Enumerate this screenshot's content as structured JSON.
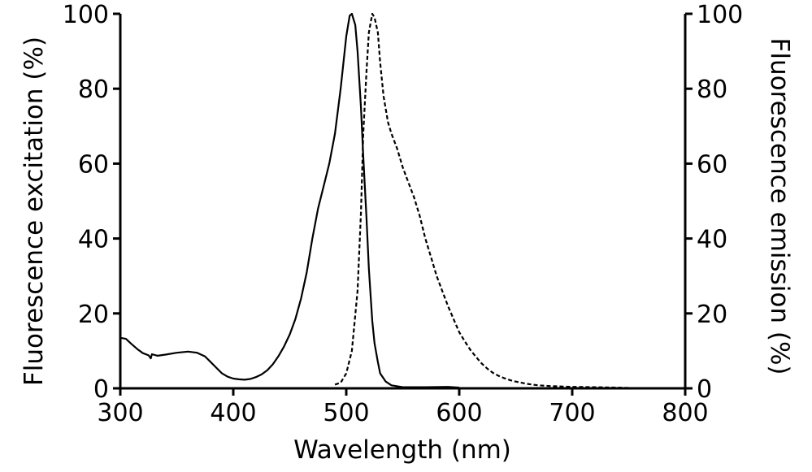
{
  "chart_data": {
    "type": "line",
    "title": "",
    "xlabel": "Wavelength (nm)",
    "ylabel_left": "Fluorescence excitation (%)",
    "ylabel_right": "Fluorescence emission (%)",
    "xlim": [
      300,
      800
    ],
    "ylim": [
      0,
      100
    ],
    "x_ticks": [
      300,
      400,
      500,
      600,
      700,
      800
    ],
    "y_ticks": [
      0,
      20,
      40,
      60,
      80,
      100
    ],
    "x_tick_labels": [
      "300",
      "400",
      "500",
      "600",
      "700",
      "800"
    ],
    "y_tick_labels": [
      "0",
      "20",
      "40",
      "60",
      "80",
      "100"
    ],
    "grid": false,
    "legend": "none",
    "series": [
      {
        "line_style": "solid",
        "color": "#000000",
        "points": [
          [
            300,
            13.5
          ],
          [
            305,
            13.2
          ],
          [
            310,
            11.8
          ],
          [
            315,
            10.5
          ],
          [
            320,
            9.4
          ],
          [
            325,
            8.8
          ],
          [
            327,
            8.0
          ],
          [
            328,
            9.1
          ],
          [
            333,
            8.7
          ],
          [
            340,
            9.0
          ],
          [
            350,
            9.5
          ],
          [
            360,
            9.8
          ],
          [
            368,
            9.5
          ],
          [
            375,
            8.5
          ],
          [
            380,
            7.0
          ],
          [
            385,
            5.5
          ],
          [
            390,
            4.0
          ],
          [
            395,
            3.1
          ],
          [
            400,
            2.6
          ],
          [
            405,
            2.4
          ],
          [
            410,
            2.3
          ],
          [
            415,
            2.5
          ],
          [
            420,
            3.0
          ],
          [
            425,
            3.7
          ],
          [
            430,
            4.8
          ],
          [
            435,
            6.4
          ],
          [
            440,
            8.6
          ],
          [
            445,
            11.2
          ],
          [
            450,
            14.4
          ],
          [
            455,
            18.5
          ],
          [
            460,
            24.0
          ],
          [
            465,
            31.0
          ],
          [
            470,
            40.0
          ],
          [
            475,
            48.0
          ],
          [
            480,
            54.0
          ],
          [
            485,
            60.0
          ],
          [
            490,
            68.0
          ],
          [
            495,
            80.0
          ],
          [
            500,
            94.0
          ],
          [
            503,
            99.5
          ],
          [
            505,
            100.0
          ],
          [
            508,
            97.0
          ],
          [
            510,
            90.0
          ],
          [
            513,
            75.0
          ],
          [
            515,
            62.0
          ],
          [
            518,
            45.0
          ],
          [
            520,
            32.0
          ],
          [
            523,
            18.0
          ],
          [
            525,
            12.0
          ],
          [
            528,
            7.0
          ],
          [
            530,
            4.0
          ],
          [
            535,
            1.8
          ],
          [
            540,
            0.8
          ],
          [
            550,
            0.3
          ],
          [
            570,
            0.3
          ],
          [
            590,
            0.4
          ],
          [
            600,
            0.2
          ]
        ]
      },
      {
        "line_style": "dashed",
        "color": "#000000",
        "points": [
          [
            490,
            1.0
          ],
          [
            495,
            1.5
          ],
          [
            500,
            4.0
          ],
          [
            505,
            10.0
          ],
          [
            510,
            26.0
          ],
          [
            513,
            47.0
          ],
          [
            515,
            68.0
          ],
          [
            518,
            85.0
          ],
          [
            520,
            95.0
          ],
          [
            523,
            100.0
          ],
          [
            525,
            99.0
          ],
          [
            528,
            95.0
          ],
          [
            530,
            87.0
          ],
          [
            533,
            78.0
          ],
          [
            537,
            71.0
          ],
          [
            540,
            68.0
          ],
          [
            545,
            64.0
          ],
          [
            550,
            59.0
          ],
          [
            555,
            55.0
          ],
          [
            560,
            51.0
          ],
          [
            565,
            46.0
          ],
          [
            570,
            40.0
          ],
          [
            575,
            35.0
          ],
          [
            580,
            30.0
          ],
          [
            585,
            26.0
          ],
          [
            590,
            22.0
          ],
          [
            595,
            18.5
          ],
          [
            600,
            15.0
          ],
          [
            605,
            12.5
          ],
          [
            610,
            10.2
          ],
          [
            615,
            8.3
          ],
          [
            620,
            6.6
          ],
          [
            625,
            5.2
          ],
          [
            630,
            4.1
          ],
          [
            635,
            3.3
          ],
          [
            640,
            2.7
          ],
          [
            645,
            2.2
          ],
          [
            650,
            1.8
          ],
          [
            660,
            1.2
          ],
          [
            670,
            0.8
          ],
          [
            680,
            0.6
          ],
          [
            690,
            0.5
          ],
          [
            700,
            0.4
          ],
          [
            720,
            0.3
          ],
          [
            740,
            0.2
          ],
          [
            750,
            0.1
          ]
        ]
      }
    ]
  }
}
